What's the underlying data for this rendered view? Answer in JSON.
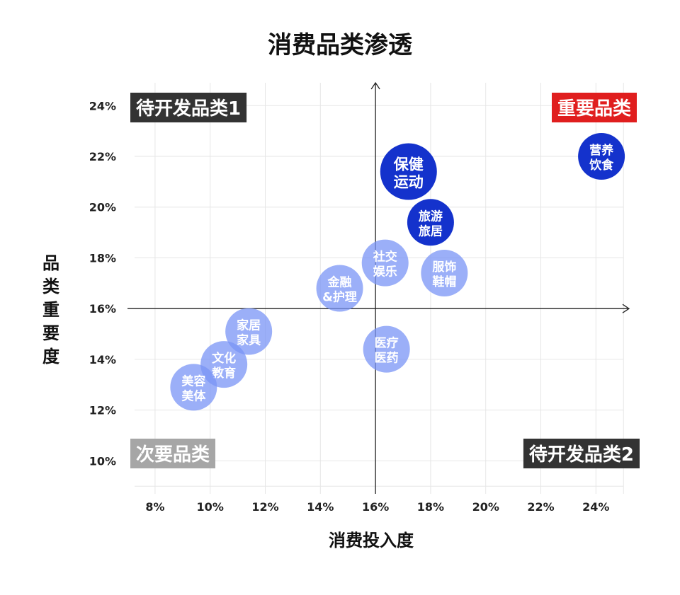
{
  "title": "消费品类渗透",
  "colors": {
    "strong": "#1432cc",
    "light": "#7a94f5",
    "dark_box": "#333333",
    "red_box": "#e01e1e",
    "gray_box": "#a6a6a6"
  },
  "chart_data": {
    "type": "scatter",
    "title": "消费品类渗透",
    "xlabel": "消费投入度",
    "ylabel": "品类重要度",
    "xlim": [
      7,
      25.2
    ],
    "ylim": [
      8.7,
      24.9
    ],
    "x_ticks": [
      "8%",
      "10%",
      "12%",
      "14%",
      "16%",
      "18%",
      "20%",
      "22%",
      "24%"
    ],
    "y_ticks": [
      "10%",
      "12%",
      "14%",
      "16%",
      "18%",
      "20%",
      "22%",
      "24%"
    ],
    "x_tick_values": [
      8,
      10,
      12,
      14,
      16,
      18,
      20,
      22,
      24
    ],
    "y_tick_values": [
      10,
      12,
      14,
      16,
      18,
      20,
      22,
      24
    ],
    "axis_cross": {
      "x": 16,
      "y": 16
    },
    "grid": true,
    "quadrants": [
      {
        "label": "待开发品类1",
        "position": "top-left",
        "color": "dark_box"
      },
      {
        "label": "重要品类",
        "position": "top-right",
        "color": "red_box"
      },
      {
        "label": "次要品类",
        "position": "bottom-left",
        "color": "gray_box"
      },
      {
        "label": "待开发品类2",
        "position": "bottom-right",
        "color": "dark_box"
      }
    ],
    "points": [
      {
        "label": [
          "营养",
          "饮食"
        ],
        "x": 24.2,
        "y": 22.0,
        "size": "medium",
        "tone": "strong"
      },
      {
        "label": [
          "保健",
          "运动"
        ],
        "x": 17.2,
        "y": 21.4,
        "size": "large",
        "tone": "strong"
      },
      {
        "label": [
          "旅游",
          "旅居"
        ],
        "x": 18.0,
        "y": 19.4,
        "size": "medium",
        "tone": "strong"
      },
      {
        "label": [
          "社交",
          "娱乐"
        ],
        "x": 16.35,
        "y": 17.8,
        "size": "medium",
        "tone": "light"
      },
      {
        "label": [
          "服饰",
          "鞋帽"
        ],
        "x": 18.5,
        "y": 17.4,
        "size": "medium",
        "tone": "light"
      },
      {
        "label": [
          "金融",
          "&护理"
        ],
        "x": 14.7,
        "y": 16.8,
        "size": "medium",
        "tone": "light"
      },
      {
        "label": [
          "家居",
          "家具"
        ],
        "x": 11.4,
        "y": 15.1,
        "size": "medium",
        "tone": "light"
      },
      {
        "label": [
          "医疗",
          "医药"
        ],
        "x": 16.4,
        "y": 14.4,
        "size": "medium",
        "tone": "light"
      },
      {
        "label": [
          "文化",
          "教育"
        ],
        "x": 10.5,
        "y": 13.8,
        "size": "medium",
        "tone": "light"
      },
      {
        "label": [
          "美容",
          "美体"
        ],
        "x": 9.4,
        "y": 12.9,
        "size": "medium",
        "tone": "light"
      }
    ]
  }
}
